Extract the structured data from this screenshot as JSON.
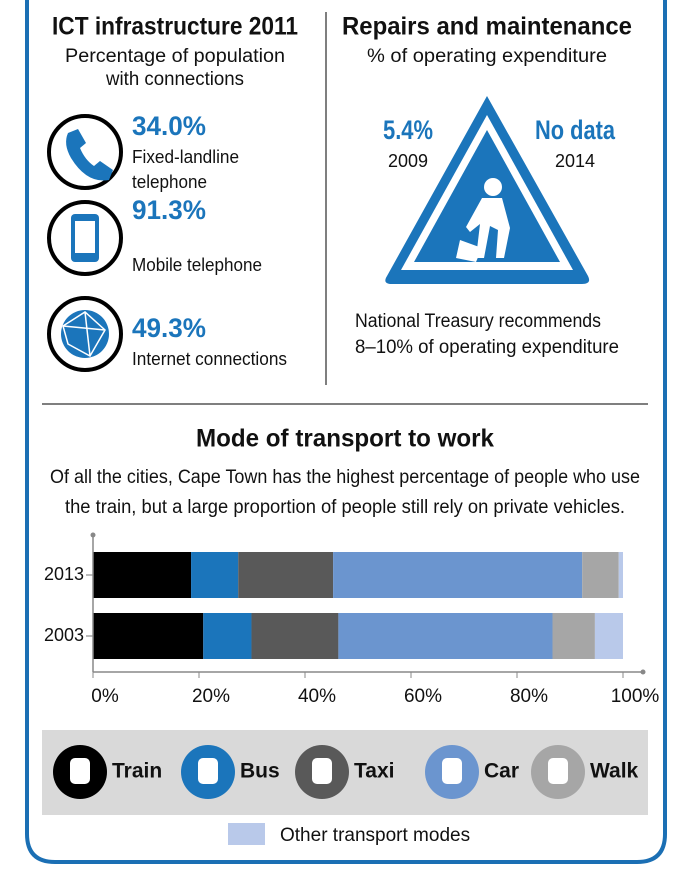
{
  "ict": {
    "title": "ICT infrastructure 2011",
    "subtitle": [
      "Percentage of population",
      "with connections"
    ],
    "items": [
      {
        "value": "34.0%",
        "label": [
          "Fixed-landline",
          "telephone"
        ]
      },
      {
        "value": "91.3%",
        "label": [
          "Mobile telephone"
        ]
      },
      {
        "value": "49.3%",
        "label": [
          "Internet connections"
        ]
      }
    ]
  },
  "repairs": {
    "title": "Repairs and maintenance",
    "subtitle": "% of operating expenditure",
    "left": {
      "value": "5.4%",
      "year": "2009"
    },
    "right": {
      "value": "No data",
      "year": "2014"
    },
    "note": [
      "National Treasury recommends",
      "8–10% of operating expenditure"
    ]
  },
  "chart_data": {
    "type": "hbar_stacked",
    "title": "Mode of transport to work",
    "subtitle": [
      "Of all the cities, Cape Town has the highest percentage of people who use",
      "the train, but a large proportion of people still rely on private vehicles."
    ],
    "categories": [
      "2013",
      "2003"
    ],
    "series": [
      {
        "name": "Train",
        "color": "#000000",
        "values": [
          18.5,
          20.8
        ]
      },
      {
        "name": "Bus",
        "color": "#1b75bb",
        "values": [
          8.9,
          9.1
        ]
      },
      {
        "name": "Taxi",
        "color": "#595959",
        "values": [
          17.9,
          16.4
        ]
      },
      {
        "name": "Car",
        "color": "#6b95cf",
        "values": [
          47.0,
          40.4
        ]
      },
      {
        "name": "Walk",
        "color": "#a6a6a6",
        "values": [
          6.9,
          8.0
        ]
      },
      {
        "name": "Other transport modes",
        "color": "#b9c9ea",
        "values": [
          0.8,
          5.3
        ]
      }
    ],
    "xlim": [
      0,
      100
    ],
    "xticks": [
      {
        "value": 0,
        "label": "0%"
      },
      {
        "value": 20,
        "label": "20%"
      },
      {
        "value": 40,
        "label": "40%"
      },
      {
        "value": 60,
        "label": "60%"
      },
      {
        "value": 80,
        "label": "80%"
      },
      {
        "value": 100,
        "label": "100%"
      }
    ]
  }
}
